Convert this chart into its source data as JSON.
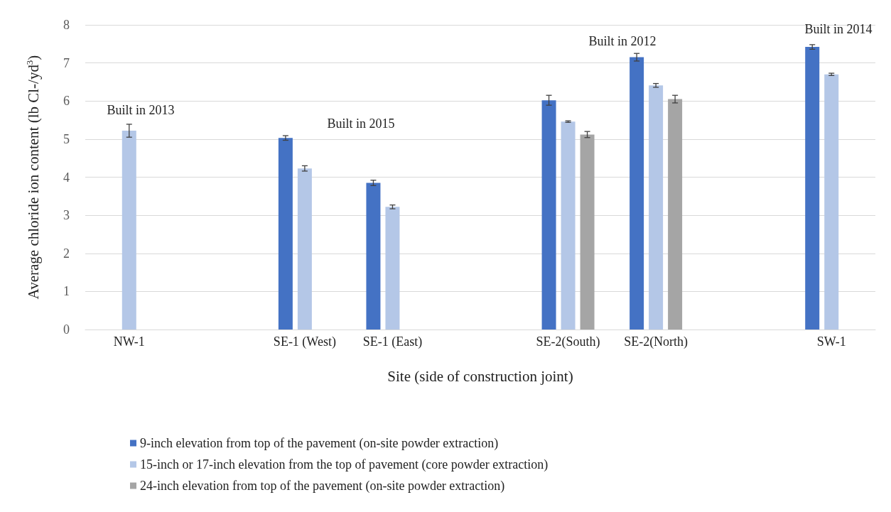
{
  "chart_data": {
    "type": "bar",
    "categories": [
      "NW-1",
      null,
      "SE-1 (West)",
      "SE-1 (East)",
      null,
      "SE-2(South)",
      "SE-2(North)",
      null,
      "SW-1"
    ],
    "series": [
      {
        "name": "9-inch elevation from top of the pavement (on-site powder extraction)",
        "color": "#4472c4",
        "values": [
          null,
          null,
          5.03,
          3.85,
          null,
          6.02,
          7.15,
          null,
          7.42
        ],
        "errors": [
          null,
          null,
          0.06,
          0.07,
          null,
          0.13,
          0.1,
          null,
          0.06
        ]
      },
      {
        "name": "15-inch or 17-inch elevation from the top of pavement (core powder extraction)",
        "color": "#b4c7e7",
        "values": [
          5.22,
          null,
          4.23,
          3.22,
          null,
          5.46,
          6.41,
          null,
          6.7
        ],
        "errors": [
          0.17,
          null,
          0.07,
          0.05,
          null,
          0.02,
          0.05,
          null,
          0.03
        ]
      },
      {
        "name": "24-inch elevation from top of the pavement (on-site powder extraction)",
        "color": "#a5a5a5",
        "values": [
          null,
          null,
          null,
          null,
          null,
          5.12,
          6.05,
          null,
          null
        ],
        "errors": [
          null,
          null,
          null,
          null,
          null,
          0.08,
          0.1,
          null,
          null
        ]
      }
    ],
    "xlabel": "Site (side of construction joint)",
    "ylabel": "Average chloride ion content (lb Cl-/yd$^{3}$)",
    "ylim": [
      0,
      8
    ],
    "yticks": [
      0,
      1,
      2,
      3,
      4,
      5,
      6,
      7,
      8
    ],
    "grid": "y",
    "legend": "bottom",
    "annotations": [
      "Built in 2013",
      "Built in 2015",
      "Built in 2012",
      "Built in 2014"
    ]
  }
}
